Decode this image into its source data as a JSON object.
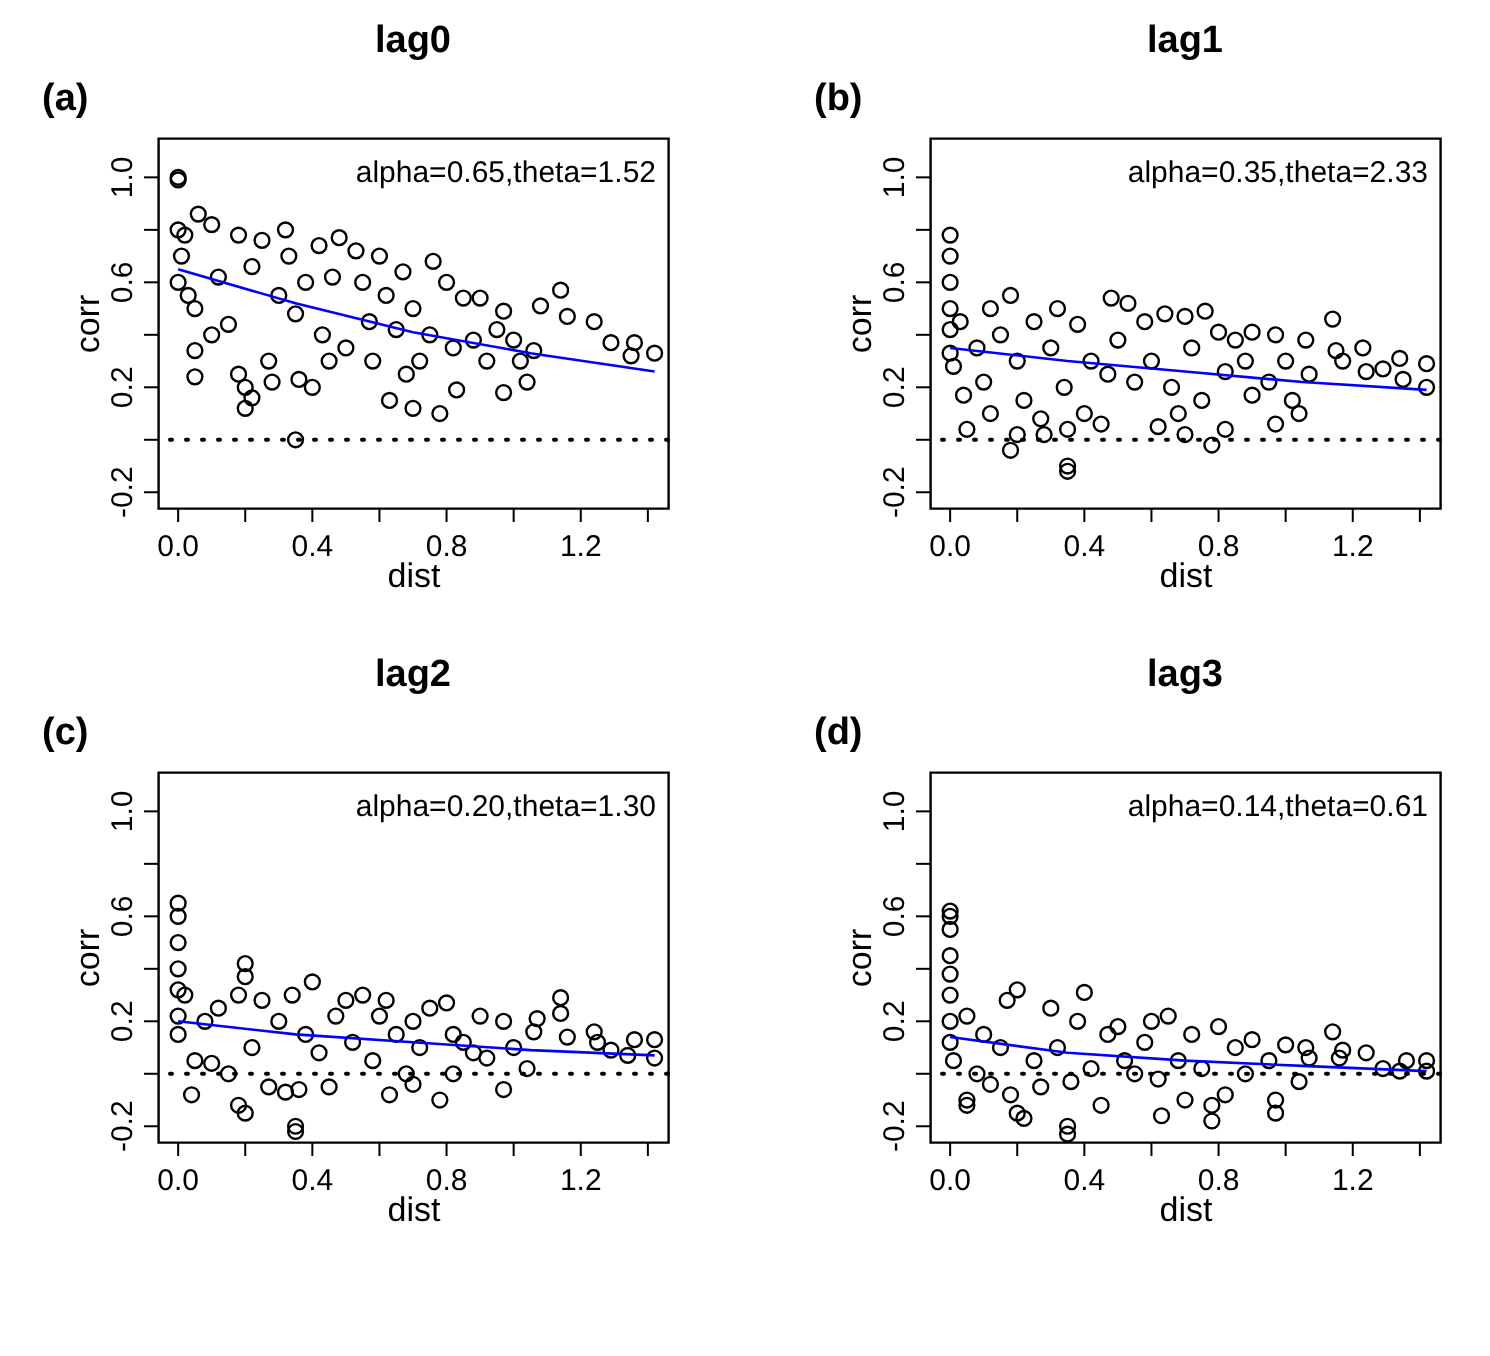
{
  "chart_data": [
    {
      "type": "scatter",
      "title": "lag0",
      "xlabel": "dist",
      "ylabel": "corr",
      "annotations": [
        "(a)",
        "alpha=0.65,theta=1.52"
      ],
      "xlim": [
        -0.06,
        1.46
      ],
      "ylim": [
        -0.26,
        1.15
      ],
      "xticks": [
        {
          "value": 0,
          "label": "0.0"
        },
        {
          "value": 0.2,
          "label": null
        },
        {
          "value": 0.4,
          "label": "0.4"
        },
        {
          "value": 0.6,
          "label": null
        },
        {
          "value": 0.8,
          "label": "0.8"
        },
        {
          "value": 1.0,
          "label": null
        },
        {
          "value": 1.2,
          "label": "1.2"
        },
        {
          "value": 1.4,
          "label": null
        }
      ],
      "yticks": [
        {
          "value": -0.2,
          "label": "-0.2"
        },
        {
          "value": 0,
          "label": null
        },
        {
          "value": 0.2,
          "label": "0.2"
        },
        {
          "value": 0.4,
          "label": null
        },
        {
          "value": 0.6,
          "label": "0.6"
        },
        {
          "value": 0.8,
          "label": null
        },
        {
          "value": 1.0,
          "label": "1.0"
        }
      ],
      "ref_lines": [
        {
          "axis": "y",
          "value": 0,
          "line_style": "dotted",
          "color": "#000000"
        }
      ],
      "series": [
        {
          "type": "scatter",
          "marker": "circle",
          "color": "#000000",
          "x": [
            0,
            0,
            0,
            0,
            0.01,
            0.02,
            0.03,
            0.05,
            0.06,
            0.05,
            0.05,
            0.1,
            0.1,
            0.12,
            0.15,
            0.18,
            0.18,
            0.2,
            0.2,
            0.22,
            0.22,
            0.25,
            0.27,
            0.28,
            0.3,
            0.32,
            0.33,
            0.35,
            0.35,
            0.36,
            0.38,
            0.4,
            0.42,
            0.43,
            0.45,
            0.46,
            0.48,
            0.5,
            0.53,
            0.55,
            0.57,
            0.58,
            0.6,
            0.62,
            0.63,
            0.65,
            0.67,
            0.68,
            0.7,
            0.7,
            0.72,
            0.75,
            0.76,
            0.78,
            0.8,
            0.82,
            0.83,
            0.85,
            0.88,
            0.9,
            0.92,
            0.95,
            0.97,
            0.97,
            1.0,
            1.02,
            1.04,
            1.06,
            1.08,
            1.14,
            1.16,
            1.24,
            1.29,
            1.35,
            1.36,
            1.42
          ],
          "values": [
            1.0,
            0.99,
            0.8,
            0.6,
            0.7,
            0.78,
            0.55,
            0.5,
            0.86,
            0.34,
            0.24,
            0.82,
            0.4,
            0.62,
            0.44,
            0.78,
            0.25,
            0.2,
            0.12,
            0.16,
            0.66,
            0.76,
            0.3,
            0.22,
            0.55,
            0.8,
            0.7,
            0.48,
            0.0,
            0.23,
            0.6,
            0.2,
            0.74,
            0.4,
            0.3,
            0.62,
            0.77,
            0.35,
            0.72,
            0.6,
            0.45,
            0.3,
            0.7,
            0.55,
            0.15,
            0.42,
            0.64,
            0.25,
            0.12,
            0.5,
            0.3,
            0.4,
            0.68,
            0.1,
            0.6,
            0.35,
            0.19,
            0.54,
            0.38,
            0.54,
            0.3,
            0.42,
            0.49,
            0.18,
            0.38,
            0.3,
            0.22,
            0.34,
            0.51,
            0.57,
            0.47,
            0.45,
            0.37,
            0.32,
            0.37,
            0.33
          ]
        },
        {
          "type": "line",
          "color": "#0000ff",
          "x": [
            0,
            0.35,
            0.7,
            1.05,
            1.42
          ],
          "values": [
            0.65,
            0.52,
            0.41,
            0.33,
            0.26
          ]
        }
      ]
    },
    {
      "type": "scatter",
      "title": "lag1",
      "xlabel": "dist",
      "ylabel": "corr",
      "annotations": [
        "(b)",
        "alpha=0.35,theta=2.33"
      ],
      "xlim": [
        -0.06,
        1.46
      ],
      "ylim": [
        -0.26,
        1.15
      ],
      "xticks": [
        {
          "value": 0,
          "label": "0.0"
        },
        {
          "value": 0.2,
          "label": null
        },
        {
          "value": 0.4,
          "label": "0.4"
        },
        {
          "value": 0.6,
          "label": null
        },
        {
          "value": 0.8,
          "label": "0.8"
        },
        {
          "value": 1.0,
          "label": null
        },
        {
          "value": 1.2,
          "label": "1.2"
        },
        {
          "value": 1.4,
          "label": null
        }
      ],
      "yticks": [
        {
          "value": -0.2,
          "label": "-0.2"
        },
        {
          "value": 0,
          "label": null
        },
        {
          "value": 0.2,
          "label": "0.2"
        },
        {
          "value": 0.4,
          "label": null
        },
        {
          "value": 0.6,
          "label": "0.6"
        },
        {
          "value": 0.8,
          "label": null
        },
        {
          "value": 1.0,
          "label": "1.0"
        }
      ],
      "ref_lines": [
        {
          "axis": "y",
          "value": 0,
          "line_style": "dotted",
          "color": "#000000"
        }
      ],
      "series": [
        {
          "type": "scatter",
          "marker": "circle",
          "color": "#000000",
          "x": [
            0,
            0,
            0,
            0,
            0,
            0,
            0.01,
            0.03,
            0.04,
            0.05,
            0.08,
            0.1,
            0.12,
            0.12,
            0.15,
            0.18,
            0.18,
            0.2,
            0.2,
            0.22,
            0.25,
            0.27,
            0.28,
            0.3,
            0.32,
            0.34,
            0.35,
            0.35,
            0.35,
            0.38,
            0.4,
            0.42,
            0.45,
            0.47,
            0.48,
            0.5,
            0.53,
            0.55,
            0.58,
            0.6,
            0.62,
            0.64,
            0.66,
            0.68,
            0.7,
            0.7,
            0.72,
            0.75,
            0.76,
            0.78,
            0.8,
            0.82,
            0.82,
            0.85,
            0.88,
            0.9,
            0.9,
            0.95,
            0.97,
            0.97,
            1.0,
            1.02,
            1.04,
            1.06,
            1.07,
            1.14,
            1.15,
            1.17,
            1.23,
            1.24,
            1.29,
            1.34,
            1.35,
            1.42,
            1.42
          ],
          "values": [
            0.78,
            0.7,
            0.6,
            0.5,
            0.42,
            0.33,
            0.28,
            0.45,
            0.17,
            0.04,
            0.35,
            0.22,
            0.5,
            0.1,
            0.4,
            0.55,
            -0.04,
            0.02,
            0.3,
            0.15,
            0.45,
            0.08,
            0.02,
            0.35,
            0.5,
            0.2,
            -0.1,
            -0.12,
            0.04,
            0.44,
            0.1,
            0.3,
            0.06,
            0.25,
            0.54,
            0.38,
            0.52,
            0.22,
            0.45,
            0.3,
            0.05,
            0.48,
            0.2,
            0.1,
            0.02,
            0.47,
            0.35,
            0.15,
            0.49,
            -0.02,
            0.41,
            0.04,
            0.26,
            0.38,
            0.3,
            0.17,
            0.41,
            0.22,
            0.06,
            0.4,
            0.3,
            0.15,
            0.1,
            0.38,
            0.25,
            0.46,
            0.34,
            0.3,
            0.35,
            0.26,
            0.27,
            0.31,
            0.23,
            0.29,
            0.2
          ]
        },
        {
          "type": "line",
          "color": "#0000ff",
          "x": [
            0,
            0.35,
            0.7,
            1.05,
            1.42
          ],
          "values": [
            0.35,
            0.3,
            0.26,
            0.22,
            0.19
          ]
        }
      ]
    },
    {
      "type": "scatter",
      "title": "lag2",
      "xlabel": "dist",
      "ylabel": "corr",
      "annotations": [
        "(c)",
        "alpha=0.20,theta=1.30"
      ],
      "xlim": [
        -0.06,
        1.46
      ],
      "ylim": [
        -0.26,
        1.15
      ],
      "xticks": [
        {
          "value": 0,
          "label": "0.0"
        },
        {
          "value": 0.2,
          "label": null
        },
        {
          "value": 0.4,
          "label": "0.4"
        },
        {
          "value": 0.6,
          "label": null
        },
        {
          "value": 0.8,
          "label": "0.8"
        },
        {
          "value": 1.0,
          "label": null
        },
        {
          "value": 1.2,
          "label": "1.2"
        },
        {
          "value": 1.4,
          "label": null
        }
      ],
      "yticks": [
        {
          "value": -0.2,
          "label": "-0.2"
        },
        {
          "value": 0,
          "label": null
        },
        {
          "value": 0.2,
          "label": "0.2"
        },
        {
          "value": 0.4,
          "label": null
        },
        {
          "value": 0.6,
          "label": "0.6"
        },
        {
          "value": 0.8,
          "label": null
        },
        {
          "value": 1.0,
          "label": "1.0"
        }
      ],
      "ref_lines": [
        {
          "axis": "y",
          "value": 0,
          "line_style": "dotted",
          "color": "#000000"
        }
      ],
      "series": [
        {
          "type": "scatter",
          "marker": "circle",
          "color": "#000000",
          "x": [
            0,
            0,
            0,
            0,
            0,
            0,
            0,
            0.02,
            0.04,
            0.05,
            0.08,
            0.1,
            0.12,
            0.15,
            0.18,
            0.18,
            0.2,
            0.2,
            0.2,
            0.22,
            0.25,
            0.27,
            0.3,
            0.32,
            0.34,
            0.35,
            0.35,
            0.36,
            0.38,
            0.4,
            0.42,
            0.45,
            0.47,
            0.5,
            0.52,
            0.55,
            0.58,
            0.6,
            0.62,
            0.63,
            0.65,
            0.68,
            0.7,
            0.7,
            0.72,
            0.75,
            0.78,
            0.8,
            0.82,
            0.82,
            0.85,
            0.88,
            0.9,
            0.92,
            0.97,
            0.97,
            1.0,
            1.04,
            1.06,
            1.07,
            1.14,
            1.14,
            1.16,
            1.24,
            1.25,
            1.29,
            1.34,
            1.36,
            1.42,
            1.42
          ],
          "values": [
            0.65,
            0.6,
            0.5,
            0.4,
            0.32,
            0.22,
            0.15,
            0.3,
            -0.08,
            0.05,
            0.2,
            0.04,
            0.25,
            0.0,
            0.3,
            -0.12,
            0.42,
            0.37,
            -0.15,
            0.1,
            0.28,
            -0.05,
            0.2,
            -0.07,
            0.3,
            -0.2,
            -0.22,
            -0.06,
            0.15,
            0.35,
            0.08,
            -0.05,
            0.22,
            0.28,
            0.12,
            0.3,
            0.05,
            0.22,
            0.28,
            -0.08,
            0.15,
            0.0,
            -0.04,
            0.2,
            0.1,
            0.25,
            -0.1,
            0.27,
            0.0,
            0.15,
            0.12,
            0.08,
            0.22,
            0.06,
            -0.06,
            0.2,
            0.1,
            0.02,
            0.16,
            0.21,
            0.29,
            0.23,
            0.14,
            0.16,
            0.12,
            0.09,
            0.07,
            0.13,
            0.13,
            0.06
          ]
        },
        {
          "type": "line",
          "color": "#0000ff",
          "x": [
            0,
            0.35,
            0.7,
            1.05,
            1.42
          ],
          "values": [
            0.2,
            0.15,
            0.12,
            0.09,
            0.07
          ]
        }
      ]
    },
    {
      "type": "scatter",
      "title": "lag3",
      "xlabel": "dist",
      "ylabel": "corr",
      "annotations": [
        "(d)",
        "alpha=0.14,theta=0.61"
      ],
      "xlim": [
        -0.06,
        1.46
      ],
      "ylim": [
        -0.26,
        1.15
      ],
      "xticks": [
        {
          "value": 0,
          "label": "0.0"
        },
        {
          "value": 0.2,
          "label": null
        },
        {
          "value": 0.4,
          "label": "0.4"
        },
        {
          "value": 0.6,
          "label": null
        },
        {
          "value": 0.8,
          "label": "0.8"
        },
        {
          "value": 1.0,
          "label": null
        },
        {
          "value": 1.2,
          "label": "1.2"
        },
        {
          "value": 1.4,
          "label": null
        }
      ],
      "yticks": [
        {
          "value": -0.2,
          "label": "-0.2"
        },
        {
          "value": 0,
          "label": null
        },
        {
          "value": 0.2,
          "label": "0.2"
        },
        {
          "value": 0.4,
          "label": null
        },
        {
          "value": 0.6,
          "label": "0.6"
        },
        {
          "value": 0.8,
          "label": null
        },
        {
          "value": 1.0,
          "label": "1.0"
        }
      ],
      "ref_lines": [
        {
          "axis": "y",
          "value": 0,
          "line_style": "dotted",
          "color": "#000000"
        }
      ],
      "series": [
        {
          "type": "scatter",
          "marker": "circle",
          "color": "#000000",
          "x": [
            0,
            0,
            0,
            0,
            0,
            0,
            0,
            0,
            0.01,
            0.05,
            0.05,
            0.05,
            0.08,
            0.1,
            0.12,
            0.15,
            0.17,
            0.18,
            0.2,
            0.2,
            0.22,
            0.25,
            0.27,
            0.3,
            0.32,
            0.35,
            0.35,
            0.36,
            0.38,
            0.4,
            0.42,
            0.45,
            0.47,
            0.5,
            0.52,
            0.55,
            0.58,
            0.6,
            0.62,
            0.63,
            0.65,
            0.68,
            0.7,
            0.72,
            0.75,
            0.78,
            0.78,
            0.8,
            0.82,
            0.85,
            0.88,
            0.9,
            0.95,
            0.97,
            0.97,
            1.0,
            1.04,
            1.06,
            1.07,
            1.14,
            1.16,
            1.17,
            1.24,
            1.29,
            1.34,
            1.36,
            1.42,
            1.42
          ],
          "values": [
            0.62,
            0.6,
            0.55,
            0.45,
            0.38,
            0.3,
            0.2,
            0.12,
            0.05,
            -0.1,
            -0.12,
            0.22,
            0.0,
            0.15,
            -0.04,
            0.1,
            0.28,
            -0.08,
            0.32,
            -0.15,
            -0.17,
            0.05,
            -0.05,
            0.25,
            0.1,
            -0.2,
            -0.23,
            -0.03,
            0.2,
            0.31,
            0.02,
            -0.12,
            0.15,
            0.18,
            0.05,
            0.0,
            0.12,
            0.2,
            -0.02,
            -0.16,
            0.22,
            0.05,
            -0.1,
            0.15,
            0.02,
            -0.12,
            -0.18,
            0.18,
            -0.08,
            0.1,
            0.0,
            0.13,
            0.05,
            -0.1,
            -0.15,
            0.11,
            -0.03,
            0.1,
            0.06,
            0.16,
            0.06,
            0.09,
            0.08,
            0.02,
            0.01,
            0.05,
            0.05,
            0.01
          ]
        },
        {
          "type": "line",
          "color": "#0000ff",
          "x": [
            0,
            0.35,
            0.7,
            1.05,
            1.42
          ],
          "values": [
            0.14,
            0.08,
            0.05,
            0.03,
            0.01
          ]
        }
      ]
    }
  ]
}
